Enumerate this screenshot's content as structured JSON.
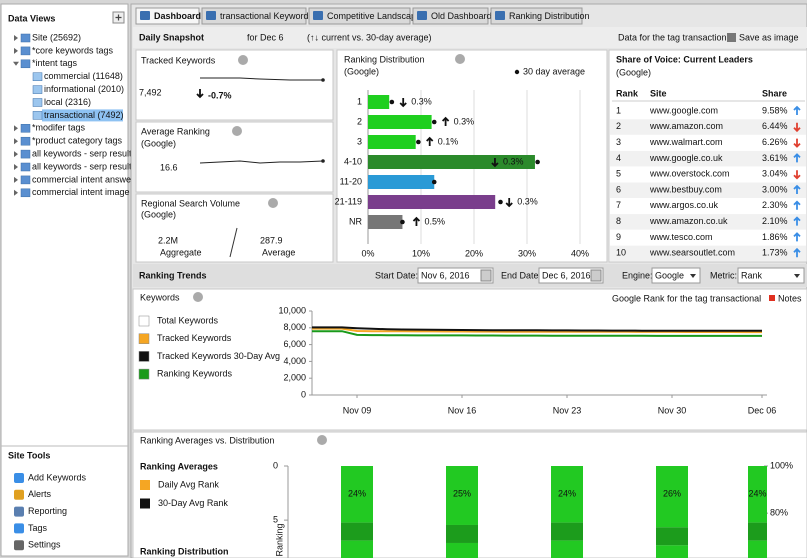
{
  "sidebar": {
    "title": "Data Views",
    "tree": [
      {
        "label": "Site (25692)"
      },
      {
        "label": "*core keywords tags"
      },
      {
        "label": "*intent tags",
        "children": [
          {
            "label": "commercial (11648)"
          },
          {
            "label": "informational (2010)"
          },
          {
            "label": "local (2316)"
          },
          {
            "label": "transactional (7492)",
            "selected": true
          }
        ]
      },
      {
        "label": "*modifer tags"
      },
      {
        "label": "*product category tags"
      },
      {
        "label": "all keywords - serp result ="
      },
      {
        "label": "all keywords - serp result ="
      },
      {
        "label": "commercial intent answers"
      },
      {
        "label": "commercial intent image res"
      }
    ],
    "tools_title": "Site Tools",
    "tools": [
      "Add Keywords",
      "Alerts",
      "Reporting",
      "Tags",
      "Settings"
    ]
  },
  "tabs": [
    {
      "label": "Dashboard",
      "active": true
    },
    {
      "label": "transactional Keywords"
    },
    {
      "label": "Competitive Landscape"
    },
    {
      "label": "Old Dashboard"
    },
    {
      "label": "Ranking Distribution"
    }
  ],
  "snapshot": {
    "title": "Daily Snapshot",
    "date_text": "for Dec 6",
    "compare": "(↑↓ current vs. 30-day average)",
    "tag_note": "Data for the tag transactional",
    "save": "Save as image"
  },
  "tracked": {
    "title": "Tracked Keywords",
    "value": "7,492",
    "change": "-0.7%"
  },
  "avg_rank": {
    "title": "Average Ranking",
    "engine": "(Google)",
    "value": "16.6"
  },
  "volume": {
    "title": "Regional Search Volume",
    "engine": "(Google)",
    "aggregate": "2.2M",
    "aggregate_label": "Aggregate",
    "average": "287.9",
    "average_label": "Average"
  },
  "distribution": {
    "type": "bar",
    "title": "Ranking Distribution",
    "subtitle": "(Google)",
    "legend": "30 day average",
    "categories": [
      "1",
      "2",
      "3",
      "4-10",
      "11-20",
      "21-119",
      "NR"
    ],
    "values": [
      4,
      12,
      9,
      31.5,
      12.5,
      24,
      6.5
    ],
    "avg_values": [
      4.5,
      12.5,
      9.5,
      32,
      12.5,
      25,
      6.5
    ],
    "change_labels": [
      "0.3%",
      "0.3%",
      "0.1%",
      "0.3%",
      null,
      "0.3%",
      "0.5%"
    ],
    "change_directions": [
      "down",
      "up",
      "up",
      "down",
      null,
      "down",
      "up"
    ],
    "colors": [
      "#1fcf1f",
      "#1fcf1f",
      "#1fcf1f",
      "#2b8a2b",
      "#2a9ad6",
      "#7a3e8c",
      "#777777"
    ],
    "xlim": [
      0,
      40
    ],
    "xticks": [
      {
        "value": 0,
        "label": "0%"
      },
      {
        "value": 10,
        "label": "10%"
      },
      {
        "value": 20,
        "label": "20%"
      },
      {
        "value": 30,
        "label": "30%"
      },
      {
        "value": 40,
        "label": "40%"
      }
    ]
  },
  "share_of_voice": {
    "title": "Share of Voice: Current Leaders",
    "engine": "(Google)",
    "headers": [
      "Rank",
      "Site",
      "Share"
    ],
    "rows": [
      [
        "1",
        "www.google.com",
        "9.58%"
      ],
      [
        "2",
        "www.amazon.com",
        "6.44%"
      ],
      [
        "3",
        "www.walmart.com",
        "6.26%"
      ],
      [
        "4",
        "www.google.co.uk",
        "3.61%"
      ],
      [
        "5",
        "www.overstock.com",
        "3.04%"
      ],
      [
        "6",
        "www.bestbuy.com",
        "3.00%"
      ],
      [
        "7",
        "www.argos.co.uk",
        "2.30%"
      ],
      [
        "8",
        "www.amazon.co.uk",
        "2.10%"
      ],
      [
        "9",
        "www.tesco.com",
        "1.86%"
      ],
      [
        "10",
        "www.searsoutlet.com",
        "1.73%"
      ]
    ],
    "trends": [
      "up",
      "down",
      "down",
      "up",
      "down",
      "up",
      "up",
      "up",
      "up",
      "up"
    ]
  },
  "trends_bar": {
    "title": "Ranking Trends",
    "start_label": "Start Date:",
    "start": "Nov 6, 2016",
    "end_label": "End Date:",
    "end": "Dec 6, 2016",
    "engine_label": "Engine:",
    "engine": "Google",
    "metric_label": "Metric:",
    "metric": "Rank"
  },
  "keywords_chart": {
    "type": "line",
    "title": "Keywords",
    "note": "Google Rank for the tag transactional",
    "notes_button": "Notes",
    "categories": [
      null,
      null,
      null,
      "Nov 09",
      null,
      null,
      null,
      null,
      null,
      null,
      "Nov 16",
      null,
      null,
      null,
      null,
      null,
      null,
      "Nov 23",
      null,
      null,
      null,
      null,
      null,
      null,
      "Nov 30",
      null,
      null,
      null,
      null,
      null,
      "Dec 06"
    ],
    "series": [
      {
        "name": "Total Keywords",
        "color": "#ffffff",
        "values": [
          null,
          null,
          null,
          null,
          null,
          null,
          null,
          null,
          null,
          null,
          null,
          null,
          null,
          null,
          null,
          null,
          null,
          null,
          null,
          null,
          null,
          null,
          null,
          null,
          null,
          null,
          null,
          null,
          null,
          null,
          null
        ]
      },
      {
        "name": "Tracked Keywords",
        "color": "#f5a623",
        "values": [
          7900,
          7900,
          7900,
          7620,
          7600,
          7590,
          7580,
          7570,
          7570,
          7560,
          7560,
          7550,
          7550,
          7540,
          7540,
          7540,
          7530,
          7530,
          7530,
          7520,
          7520,
          7520,
          7510,
          7510,
          7510,
          7500,
          7500,
          7500,
          7500,
          7490,
          7492
        ]
      },
      {
        "name": "Tracked Keywords 30-Day Avg",
        "color": "#111111",
        "values": [
          8050,
          8050,
          8050,
          7950,
          7880,
          7830,
          7800,
          7780,
          7760,
          7750,
          7740,
          7730,
          7720,
          7710,
          7700,
          7700,
          7690,
          7690,
          7680,
          7680,
          7670,
          7670,
          7660,
          7660,
          7650,
          7650,
          7650,
          7640,
          7640,
          7640,
          7640
        ]
      },
      {
        "name": "Ranking Keywords",
        "color": "#1a9a1a",
        "values": [
          7600,
          7600,
          7600,
          7150,
          7130,
          7120,
          7110,
          7100,
          7100,
          7090,
          7090,
          7080,
          7080,
          7070,
          7070,
          7070,
          7060,
          7060,
          7060,
          7050,
          7050,
          7050,
          7050,
          7040,
          7040,
          7040,
          7040,
          7030,
          7030,
          7030,
          7030
        ]
      }
    ],
    "ylim": [
      0,
      10000
    ],
    "yticks": [
      0,
      {
        "value": 2000,
        "label": "2,000"
      },
      {
        "value": 4000,
        "label": "4,000"
      },
      {
        "value": 6000,
        "label": "6,000"
      },
      {
        "value": 8000,
        "label": "8,000"
      },
      {
        "value": 10000,
        "label": "10,000"
      }
    ]
  },
  "rank_chart": {
    "title": "Ranking Averages vs. Distribution",
    "legend_title": "Ranking Averages",
    "legend": [
      {
        "name": "Daily Avg Rank",
        "color": "#f5a623"
      },
      {
        "name": "30-Day Avg Rank",
        "color": "#111111"
      }
    ],
    "distribution_title": "Ranking Distribution",
    "y_label": "Ranking",
    "ylim": [
      0,
      8.5
    ],
    "yticks": [
      0,
      5
    ],
    "y2lim": [
      100,
      61
    ],
    "y2ticks": [
      {
        "value": 100,
        "label": "100%"
      },
      {
        "value": 80,
        "label": "80%"
      }
    ],
    "values": [
      24,
      25,
      24,
      26,
      24
    ],
    "value_labels": [
      "24%",
      "25%",
      "24%",
      "26%",
      "24%"
    ]
  }
}
